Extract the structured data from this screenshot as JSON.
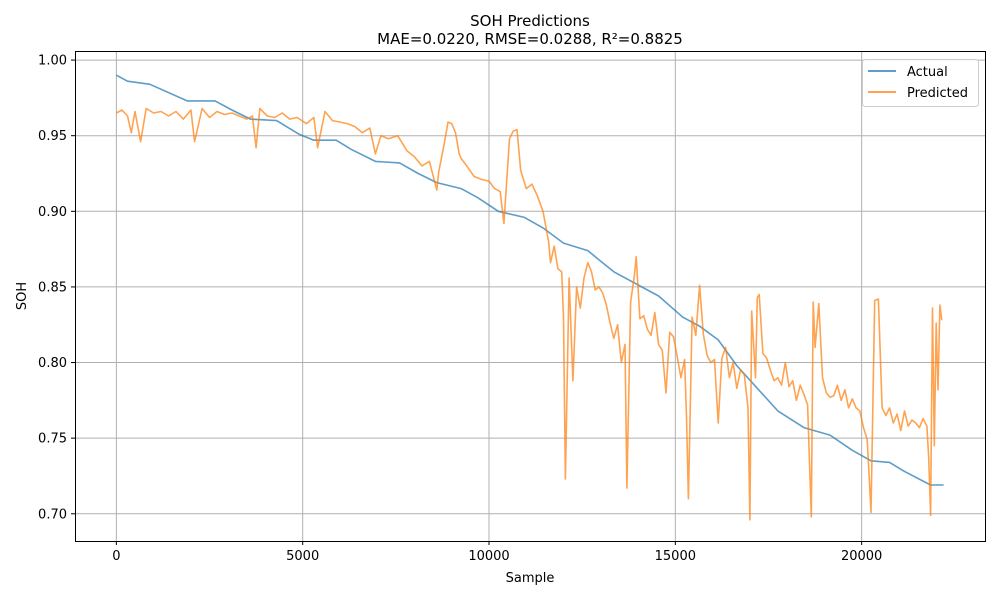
{
  "chart_data": {
    "type": "line",
    "title": "SOH Predictions",
    "subtitle": "MAE=0.0220, RMSE=0.0288, R²=0.8825",
    "xlabel": "Sample",
    "ylabel": "SOH",
    "xlim": [
      -1110,
      23310
    ],
    "ylim": [
      0.682,
      1.006
    ],
    "xticks": [
      0,
      5000,
      10000,
      15000,
      20000
    ],
    "xtick_labels": [
      "0",
      "5000",
      "10000",
      "15000",
      "20000"
    ],
    "yticks": [
      0.7,
      0.75,
      0.8,
      0.85,
      0.9,
      0.95,
      1.0
    ],
    "ytick_labels": [
      "0.70",
      "0.75",
      "0.80",
      "0.85",
      "0.90",
      "0.95",
      "1.00"
    ],
    "grid": true,
    "legend_position": "top-right",
    "series": [
      {
        "name": "Actual",
        "color": "#1f77b4",
        "x": [
          0,
          300,
          900,
          1900,
          2650,
          3100,
          3600,
          4300,
          4900,
          5300,
          5900,
          6300,
          6950,
          7600,
          8100,
          8600,
          9250,
          9700,
          10250,
          10950,
          11450,
          12000,
          12650,
          12950,
          13350,
          13950,
          14550,
          15200,
          15650,
          16150,
          16650,
          17200,
          17750,
          18450,
          19150,
          19750,
          20250,
          20750,
          21150,
          21850,
          22200
        ],
        "y": [
          0.99,
          0.986,
          0.984,
          0.973,
          0.973,
          0.967,
          0.961,
          0.96,
          0.951,
          0.947,
          0.947,
          0.941,
          0.933,
          0.932,
          0.925,
          0.919,
          0.915,
          0.909,
          0.9,
          0.896,
          0.889,
          0.879,
          0.874,
          0.868,
          0.86,
          0.852,
          0.844,
          0.83,
          0.824,
          0.815,
          0.798,
          0.783,
          0.768,
          0.757,
          0.752,
          0.742,
          0.735,
          0.734,
          0.728,
          0.719,
          0.719
        ]
      },
      {
        "name": "Predicted",
        "color": "#ff7f0e",
        "x": [
          0,
          150,
          300,
          400,
          500,
          650,
          800,
          1000,
          1200,
          1400,
          1600,
          1800,
          2000,
          2100,
          2300,
          2500,
          2700,
          2900,
          3100,
          3300,
          3500,
          3650,
          3750,
          3850,
          4050,
          4250,
          4450,
          4650,
          4850,
          5100,
          5300,
          5400,
          5600,
          5800,
          6000,
          6200,
          6400,
          6600,
          6800,
          6950,
          7100,
          7300,
          7550,
          7800,
          8000,
          8200,
          8400,
          8600,
          8650,
          8800,
          8900,
          9000,
          9100,
          9200,
          9250,
          9400,
          9600,
          9800,
          10000,
          10150,
          10300,
          10400,
          10550,
          10650,
          10750,
          10850,
          11000,
          11150,
          11300,
          11450,
          11600,
          11650,
          11750,
          11850,
          11950,
          12000,
          12050,
          12150,
          12250,
          12350,
          12450,
          12550,
          12650,
          12750,
          12850,
          12950,
          13050,
          13150,
          13250,
          13350,
          13450,
          13550,
          13650,
          13700,
          13800,
          13900,
          13950,
          14050,
          14150,
          14250,
          14350,
          14450,
          14550,
          14650,
          14750,
          14850,
          14950,
          15050,
          15150,
          15250,
          15300,
          15350,
          15450,
          15550,
          15650,
          15750,
          15850,
          15950,
          16050,
          16150,
          16250,
          16350,
          16450,
          16550,
          16650,
          16750,
          16850,
          16950,
          17000,
          17050,
          17150,
          17200,
          17250,
          17350,
          17450,
          17550,
          17650,
          17750,
          17850,
          17950,
          18050,
          18150,
          18250,
          18350,
          18450,
          18550,
          18650,
          18700,
          18750,
          18850,
          18950,
          19050,
          19150,
          19250,
          19350,
          19450,
          19550,
          19650,
          19750,
          19850,
          19950,
          20050,
          20150,
          20250,
          20350,
          20450,
          20550,
          20650,
          20750,
          20850,
          20950,
          21050,
          21150,
          21250,
          21350,
          21450,
          21550,
          21650,
          21750,
          21800,
          21850,
          21900,
          21950,
          22000,
          22050,
          22100,
          22150
        ],
        "y": [
          0.965,
          0.967,
          0.963,
          0.952,
          0.966,
          0.946,
          0.968,
          0.965,
          0.966,
          0.963,
          0.966,
          0.961,
          0.967,
          0.946,
          0.968,
          0.962,
          0.966,
          0.964,
          0.965,
          0.963,
          0.961,
          0.963,
          0.942,
          0.968,
          0.963,
          0.962,
          0.965,
          0.961,
          0.962,
          0.958,
          0.962,
          0.942,
          0.966,
          0.96,
          0.959,
          0.958,
          0.956,
          0.952,
          0.955,
          0.938,
          0.95,
          0.948,
          0.95,
          0.94,
          0.936,
          0.93,
          0.933,
          0.914,
          0.926,
          0.945,
          0.959,
          0.958,
          0.952,
          0.938,
          0.935,
          0.93,
          0.923,
          0.921,
          0.92,
          0.915,
          0.913,
          0.892,
          0.948,
          0.953,
          0.954,
          0.927,
          0.915,
          0.918,
          0.91,
          0.9,
          0.88,
          0.866,
          0.877,
          0.862,
          0.86,
          0.83,
          0.723,
          0.856,
          0.788,
          0.85,
          0.836,
          0.856,
          0.866,
          0.86,
          0.848,
          0.85,
          0.846,
          0.838,
          0.826,
          0.816,
          0.825,
          0.8,
          0.812,
          0.717,
          0.84,
          0.857,
          0.87,
          0.829,
          0.831,
          0.822,
          0.818,
          0.833,
          0.812,
          0.808,
          0.78,
          0.82,
          0.817,
          0.804,
          0.79,
          0.802,
          0.764,
          0.71,
          0.83,
          0.818,
          0.851,
          0.819,
          0.805,
          0.8,
          0.802,
          0.76,
          0.803,
          0.81,
          0.79,
          0.8,
          0.783,
          0.795,
          0.792,
          0.77,
          0.696,
          0.834,
          0.79,
          0.843,
          0.845,
          0.806,
          0.803,
          0.795,
          0.788,
          0.79,
          0.785,
          0.8,
          0.784,
          0.788,
          0.775,
          0.785,
          0.779,
          0.772,
          0.698,
          0.84,
          0.81,
          0.839,
          0.79,
          0.78,
          0.777,
          0.778,
          0.785,
          0.775,
          0.782,
          0.77,
          0.776,
          0.77,
          0.768,
          0.757,
          0.749,
          0.701,
          0.841,
          0.842,
          0.77,
          0.765,
          0.77,
          0.76,
          0.766,
          0.755,
          0.768,
          0.758,
          0.762,
          0.76,
          0.757,
          0.763,
          0.758,
          0.737,
          0.699,
          0.836,
          0.745,
          0.826,
          0.782,
          0.838,
          0.828
        ]
      }
    ]
  }
}
